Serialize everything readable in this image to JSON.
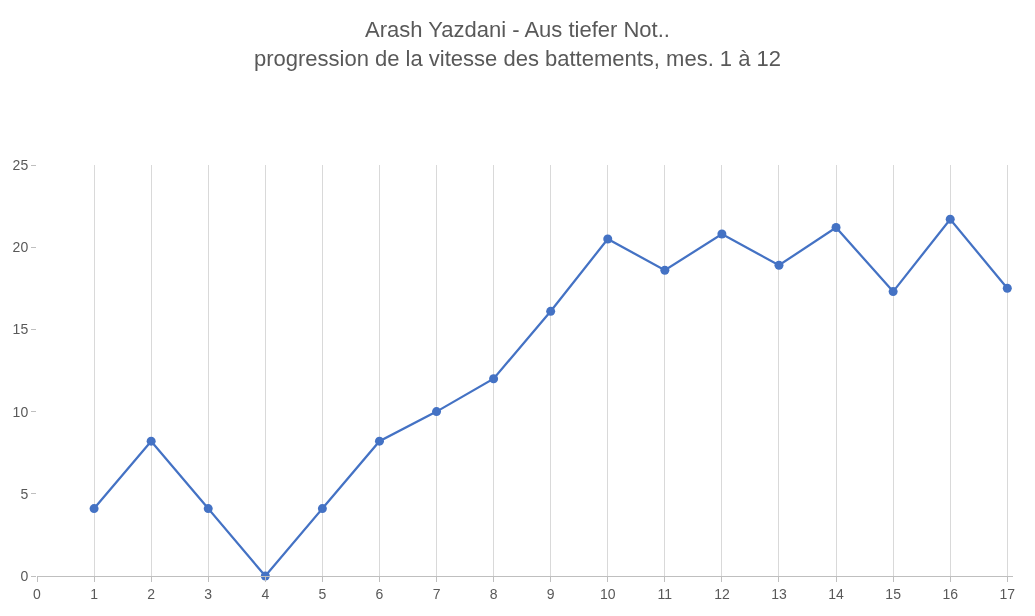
{
  "chart_data": {
    "type": "line",
    "title": "Arash Yazdani - Aus tiefer Not..",
    "subtitle": "progression de la vitesse des battements, mes. 1 à 12",
    "x": [
      1,
      2,
      3,
      4,
      5,
      6,
      7,
      8,
      9,
      10,
      11,
      12,
      13,
      14,
      15,
      16,
      17
    ],
    "series": [
      {
        "color": "#4472c4",
        "values": [
          4.1,
          8.2,
          4.1,
          0,
          4.1,
          8.2,
          10,
          12,
          16.1,
          20.5,
          18.6,
          20.8,
          18.9,
          21.2,
          17.3,
          21.7,
          17.5
        ]
      }
    ],
    "xlim": [
      0,
      17.1
    ],
    "xticks": [
      0,
      1,
      2,
      3,
      4,
      5,
      6,
      7,
      8,
      9,
      10,
      11,
      12,
      13,
      14,
      15,
      16,
      17
    ],
    "ylim": [
      0,
      25
    ],
    "yticks": [
      0,
      5,
      10,
      15,
      20,
      25
    ],
    "grid": "x",
    "marker": "circle",
    "line_style": "solid",
    "legend": false
  }
}
